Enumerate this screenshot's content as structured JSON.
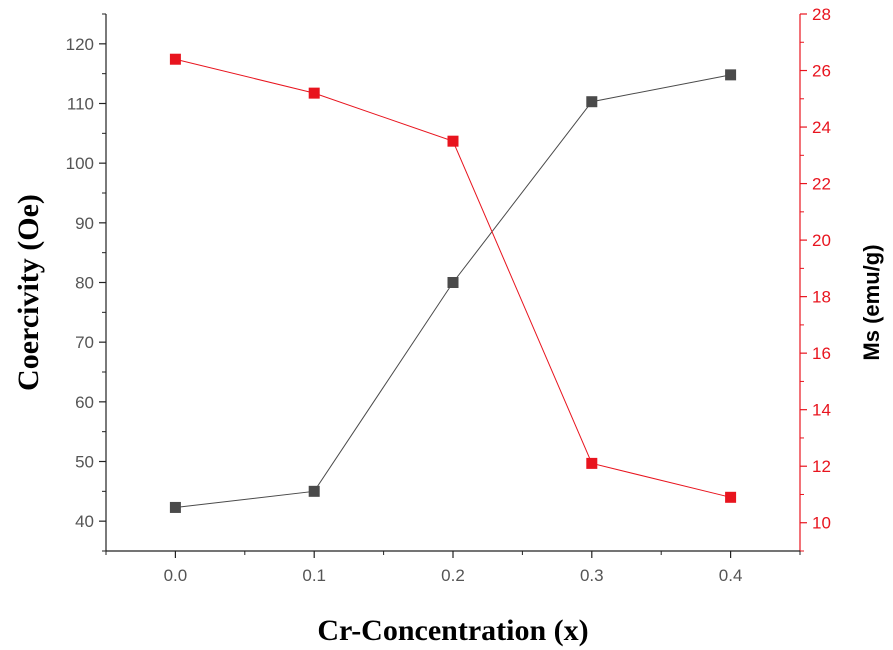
{
  "chart_data": {
    "type": "line",
    "title": "",
    "xlabel": "Cr-Concentration (x)",
    "x": [
      0.0,
      0.1,
      0.2,
      0.3,
      0.4
    ],
    "x_tick_labels": [
      "0.0",
      "0.1",
      "0.2",
      "0.3",
      "0.4"
    ],
    "xlim": [
      -0.05,
      0.45
    ],
    "series": [
      {
        "name": "",
        "axis": "left",
        "color": "#4a4a4a",
        "marker": "square",
        "values": [
          42.3,
          45.0,
          80.0,
          110.3,
          114.8
        ]
      },
      {
        "name": "",
        "axis": "right",
        "color": "#e8141e",
        "marker": "square",
        "values": [
          26.4,
          25.2,
          23.5,
          12.1,
          10.9
        ]
      }
    ],
    "y_left": {
      "label": "Coercivity  (Oe)",
      "ylim": [
        35,
        125
      ],
      "ticks": [
        40,
        50,
        60,
        70,
        80,
        90,
        100,
        110,
        120
      ],
      "tick_labels": [
        "40",
        "50",
        "60",
        "70",
        "80",
        "90",
        "100",
        "110",
        "120"
      ],
      "color": "#555555"
    },
    "y_right": {
      "label": "Ms (emu/g)",
      "ylim": [
        9,
        28
      ],
      "ticks": [
        10,
        12,
        14,
        16,
        18,
        20,
        22,
        24,
        26,
        28
      ],
      "tick_labels": [
        "10",
        "12",
        "14",
        "16",
        "18",
        "20",
        "22",
        "24",
        "26",
        "28"
      ],
      "color": "#e8141e"
    },
    "grid": false,
    "legend": "none"
  }
}
